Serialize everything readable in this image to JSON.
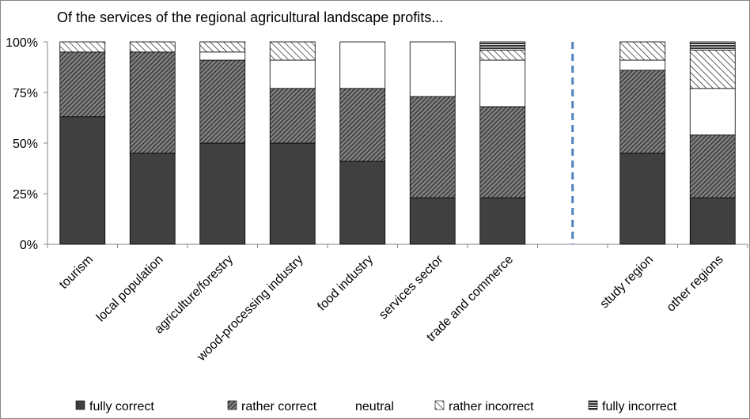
{
  "chart_data": {
    "type": "bar",
    "stacked": true,
    "title": "Of the services of the regional agricultural landscape profits...",
    "xlabel": "",
    "ylabel": "",
    "ylim": [
      0,
      100
    ],
    "y_ticks": [
      "0%",
      "25%",
      "50%",
      "75%",
      "100%"
    ],
    "categories": [
      "tourism",
      "local population",
      "agriculture/forestry",
      "wood-processing industry",
      "food industry",
      "services sector",
      "trade and commerce",
      "study region",
      "other regions"
    ],
    "divider_after_index": 6,
    "legend_position": "bottom",
    "series": [
      {
        "name": "fully correct",
        "pattern": "solid",
        "values": [
          63,
          45,
          50,
          50,
          41,
          23,
          23,
          45,
          23
        ]
      },
      {
        "name": "rather correct",
        "pattern": "dense",
        "values": [
          32,
          50,
          41,
          27,
          36,
          50,
          45,
          41,
          31
        ]
      },
      {
        "name": "neutral",
        "pattern": "empty",
        "values": [
          0,
          0,
          4,
          14,
          23,
          27,
          23,
          5,
          23
        ]
      },
      {
        "name": "rather incorrect",
        "pattern": "diagonal",
        "values": [
          5,
          5,
          5,
          9,
          0,
          0,
          5,
          9,
          19
        ]
      },
      {
        "name": "fully incorrect",
        "pattern": "hlines",
        "values": [
          0,
          0,
          0,
          0,
          0,
          0,
          4,
          0,
          4
        ]
      }
    ],
    "colors": {
      "dark": "#404040",
      "outline": "#000000",
      "divider": "#4f81bd",
      "grid": "#868686"
    }
  }
}
